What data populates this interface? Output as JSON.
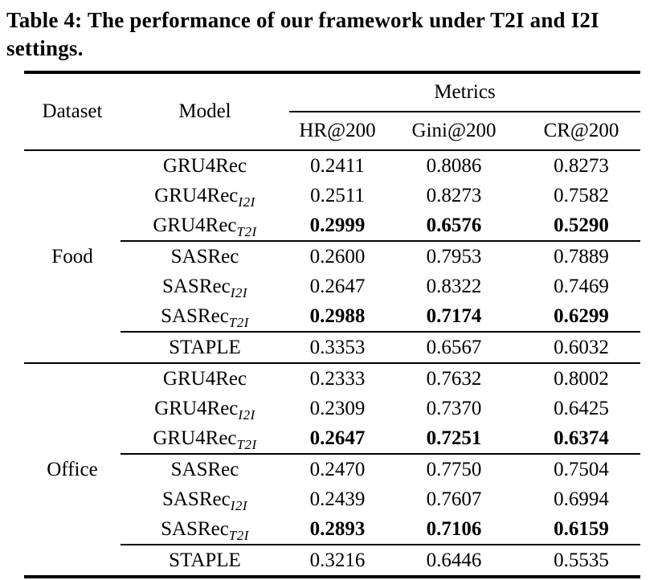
{
  "caption": "Table 4: The performance of our framework under T2I and I2I settings.",
  "colors": {
    "text": "#000000",
    "background": "#ffffff",
    "rule": "#000000"
  },
  "table": {
    "header": {
      "dataset": "Dataset",
      "model": "Model",
      "metrics_group": "Metrics",
      "metrics": [
        "HR@200",
        "Gini@200",
        "CR@200"
      ]
    },
    "sections": [
      {
        "dataset": "Food",
        "rows": [
          {
            "model_base": "GRU4Rec",
            "model_sub": "",
            "hr": "0.2411",
            "gini": "0.8086",
            "cr": "0.8273",
            "bold": false
          },
          {
            "model_base": "GRU4Rec",
            "model_sub": "I2I",
            "hr": "0.2511",
            "gini": "0.8273",
            "cr": "0.7582",
            "bold": false
          },
          {
            "model_base": "GRU4Rec",
            "model_sub": "T2I",
            "hr": "0.2999",
            "gini": "0.6576",
            "cr": "0.5290",
            "bold": true
          },
          {
            "model_base": "SASRec",
            "model_sub": "",
            "hr": "0.2600",
            "gini": "0.7953",
            "cr": "0.7889",
            "bold": false
          },
          {
            "model_base": "SASRec",
            "model_sub": "I2I",
            "hr": "0.2647",
            "gini": "0.8322",
            "cr": "0.7469",
            "bold": false
          },
          {
            "model_base": "SASRec",
            "model_sub": "T2I",
            "hr": "0.2988",
            "gini": "0.7174",
            "cr": "0.6299",
            "bold": true
          },
          {
            "model_base": "STAPLE",
            "model_sub": "",
            "hr": "0.3353",
            "gini": "0.6567",
            "cr": "0.6032",
            "bold": false
          }
        ]
      },
      {
        "dataset": "Office",
        "rows": [
          {
            "model_base": "GRU4Rec",
            "model_sub": "",
            "hr": "0.2333",
            "gini": "0.7632",
            "cr": "0.8002",
            "bold": false
          },
          {
            "model_base": "GRU4Rec",
            "model_sub": "I2I",
            "hr": "0.2309",
            "gini": "0.7370",
            "cr": "0.6425",
            "bold": false
          },
          {
            "model_base": "GRU4Rec",
            "model_sub": "T2I",
            "hr": "0.2647",
            "gini": "0.7251",
            "cr": "0.6374",
            "bold": true
          },
          {
            "model_base": "SASRec",
            "model_sub": "",
            "hr": "0.2470",
            "gini": "0.7750",
            "cr": "0.7504",
            "bold": false
          },
          {
            "model_base": "SASRec",
            "model_sub": "I2I",
            "hr": "0.2439",
            "gini": "0.7607",
            "cr": "0.6994",
            "bold": false
          },
          {
            "model_base": "SASRec",
            "model_sub": "T2I",
            "hr": "0.2893",
            "gini": "0.7106",
            "cr": "0.6159",
            "bold": true
          },
          {
            "model_base": "STAPLE",
            "model_sub": "",
            "hr": "0.3216",
            "gini": "0.6446",
            "cr": "0.5535",
            "bold": false
          }
        ]
      }
    ]
  }
}
